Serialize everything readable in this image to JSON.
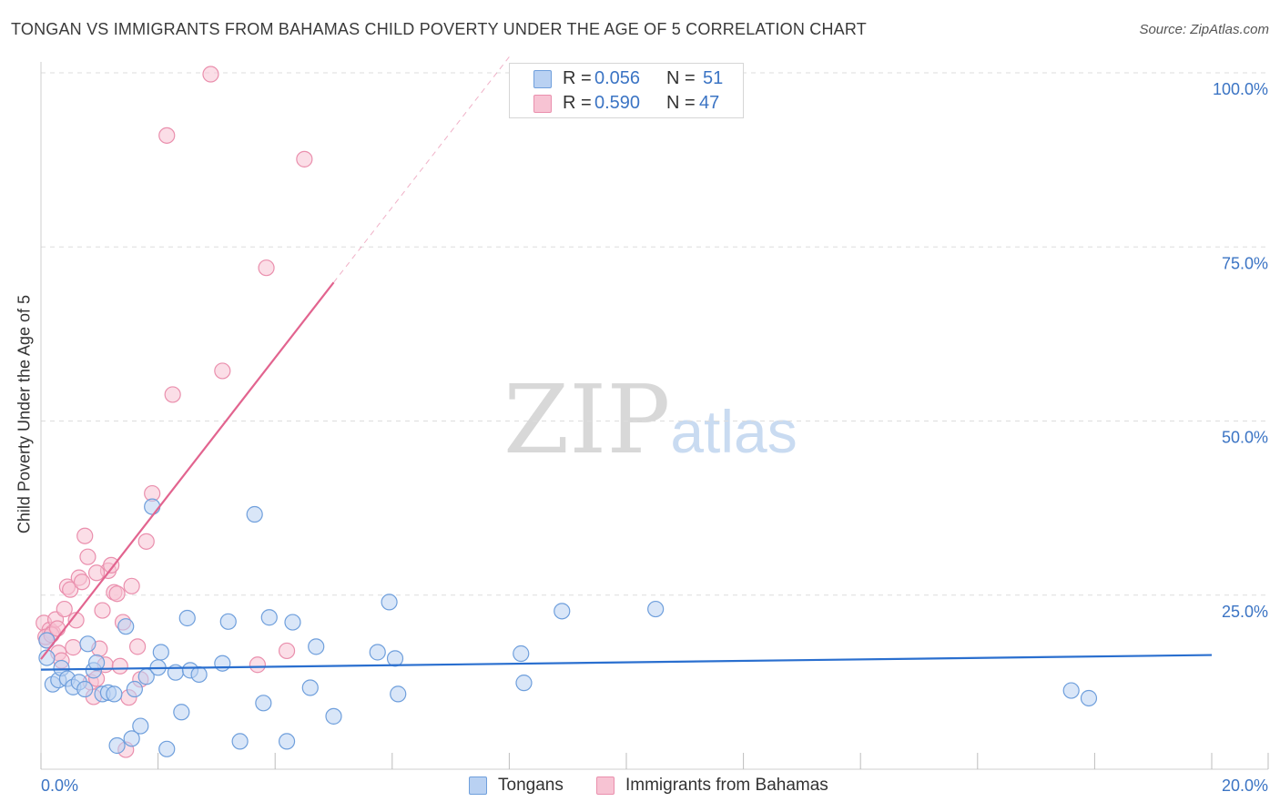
{
  "header": {
    "title": "TONGAN VS IMMIGRANTS FROM BAHAMAS CHILD POVERTY UNDER THE AGE OF 5 CORRELATION CHART",
    "source": "Source: ZipAtlas.com"
  },
  "watermark": {
    "zip": "ZIP",
    "atlas": "atlas"
  },
  "legend": {
    "rows": [
      {
        "r_label": "R =",
        "r_value": "0.056",
        "n_label": "N =",
        "n_value": "51"
      },
      {
        "r_label": "R =",
        "r_value": "0.590",
        "n_label": "N =",
        "n_value": "47"
      }
    ]
  },
  "bottom_legend": {
    "tongans": "Tongans",
    "bahamas": "Immigrants from Bahamas"
  },
  "colors": {
    "blue_fill": "#b9d1f2",
    "blue_stroke": "#6f9fdc",
    "blue_line": "#2a6fcf",
    "pink_fill": "#f7c3d3",
    "pink_stroke": "#ea8fad",
    "pink_line": "#e2648f",
    "axis_text": "#3b74c4",
    "grid": "#dddddd"
  },
  "chart_data": {
    "type": "scatter",
    "title": "TONGAN VS IMMIGRANTS FROM BAHAMAS CHILD POVERTY UNDER THE AGE OF 5 CORRELATION CHART",
    "xlabel": "",
    "ylabel": "Child Poverty Under the Age of 5",
    "xlim": [
      0,
      20
    ],
    "ylim": [
      0,
      100
    ],
    "x_tick_labels": {
      "0": "0.0%",
      "20": "20.0%"
    },
    "y_tick_labels": {
      "25": "25.0%",
      "50": "50.0%",
      "75": "75.0%",
      "100": "100.0%"
    },
    "y_tick_label_values": [
      25,
      50,
      75,
      100
    ],
    "y_grid_values": [
      25,
      50,
      75,
      100
    ],
    "x_tick_values": [
      0,
      2,
      4,
      6,
      8,
      10,
      12,
      14,
      16,
      18,
      20
    ],
    "series": [
      {
        "name": "Tongans",
        "color": "blue",
        "trend": {
          "x": [
            0,
            20
          ],
          "y": [
            14.3,
            16.4
          ],
          "style": "solid"
        },
        "points": [
          [
            0.1,
            18.5
          ],
          [
            0.2,
            12.2
          ],
          [
            0.3,
            12.8
          ],
          [
            0.35,
            14.5
          ],
          [
            0.45,
            13.0
          ],
          [
            0.55,
            11.8
          ],
          [
            0.65,
            12.5
          ],
          [
            0.75,
            11.5
          ],
          [
            0.8,
            18.0
          ],
          [
            0.9,
            14.2
          ],
          [
            0.95,
            15.3
          ],
          [
            1.05,
            10.8
          ],
          [
            1.15,
            11.0
          ],
          [
            1.25,
            10.8
          ],
          [
            1.3,
            3.4
          ],
          [
            1.45,
            20.5
          ],
          [
            1.55,
            4.4
          ],
          [
            1.6,
            11.5
          ],
          [
            1.7,
            6.2
          ],
          [
            1.8,
            13.3
          ],
          [
            1.9,
            37.7
          ],
          [
            2.0,
            14.6
          ],
          [
            2.05,
            16.8
          ],
          [
            2.15,
            2.9
          ],
          [
            2.3,
            13.9
          ],
          [
            2.4,
            8.2
          ],
          [
            2.5,
            21.7
          ],
          [
            2.55,
            14.2
          ],
          [
            2.7,
            13.6
          ],
          [
            3.1,
            15.2
          ],
          [
            3.2,
            21.2
          ],
          [
            3.4,
            4.0
          ],
          [
            3.65,
            36.6
          ],
          [
            3.8,
            9.5
          ],
          [
            3.9,
            21.8
          ],
          [
            4.2,
            4.0
          ],
          [
            4.3,
            21.1
          ],
          [
            4.6,
            11.7
          ],
          [
            4.7,
            17.6
          ],
          [
            5.0,
            7.6
          ],
          [
            5.75,
            16.8
          ],
          [
            5.95,
            24.0
          ],
          [
            6.05,
            15.9
          ],
          [
            6.1,
            10.8
          ],
          [
            8.2,
            16.6
          ],
          [
            8.25,
            12.4
          ],
          [
            8.9,
            22.7
          ],
          [
            10.5,
            23.0
          ],
          [
            17.6,
            11.3
          ],
          [
            17.9,
            10.2
          ],
          [
            0.1,
            16.0
          ]
        ]
      },
      {
        "name": "Immigrants from Bahamas",
        "color": "pink",
        "trend": {
          "x": [
            0,
            5.0
          ],
          "y": [
            15.8,
            69.9
          ],
          "dash_x": [
            5.0,
            8.0
          ],
          "dash_y": [
            69.9,
            102.3
          ]
        },
        "points": [
          [
            0.05,
            21.0
          ],
          [
            0.1,
            18.5
          ],
          [
            0.15,
            20.0
          ],
          [
            0.2,
            19.6
          ],
          [
            0.25,
            21.5
          ],
          [
            0.3,
            16.7
          ],
          [
            0.35,
            15.6
          ],
          [
            0.4,
            23.0
          ],
          [
            0.45,
            26.2
          ],
          [
            0.5,
            25.8
          ],
          [
            0.55,
            17.5
          ],
          [
            0.6,
            21.4
          ],
          [
            0.65,
            27.5
          ],
          [
            0.7,
            26.9
          ],
          [
            0.75,
            33.5
          ],
          [
            0.8,
            30.5
          ],
          [
            0.85,
            12.5
          ],
          [
            0.9,
            10.4
          ],
          [
            0.95,
            13.0
          ],
          [
            1.0,
            17.3
          ],
          [
            1.05,
            22.8
          ],
          [
            1.1,
            15.0
          ],
          [
            1.15,
            28.5
          ],
          [
            1.2,
            29.3
          ],
          [
            1.25,
            25.4
          ],
          [
            1.3,
            25.2
          ],
          [
            1.35,
            14.8
          ],
          [
            1.4,
            21.1
          ],
          [
            1.45,
            2.8
          ],
          [
            1.5,
            10.3
          ],
          [
            1.55,
            26.3
          ],
          [
            1.65,
            17.6
          ],
          [
            1.7,
            12.9
          ],
          [
            1.8,
            32.7
          ],
          [
            1.9,
            39.6
          ],
          [
            2.15,
            91.0
          ],
          [
            2.25,
            53.8
          ],
          [
            2.9,
            99.8
          ],
          [
            3.1,
            57.2
          ],
          [
            3.85,
            72.0
          ],
          [
            4.2,
            17.0
          ],
          [
            4.5,
            87.6
          ],
          [
            0.08,
            19.0
          ],
          [
            0.18,
            19.3
          ],
          [
            0.28,
            20.2
          ],
          [
            0.95,
            28.2
          ],
          [
            3.7,
            15.0
          ]
        ]
      }
    ]
  }
}
